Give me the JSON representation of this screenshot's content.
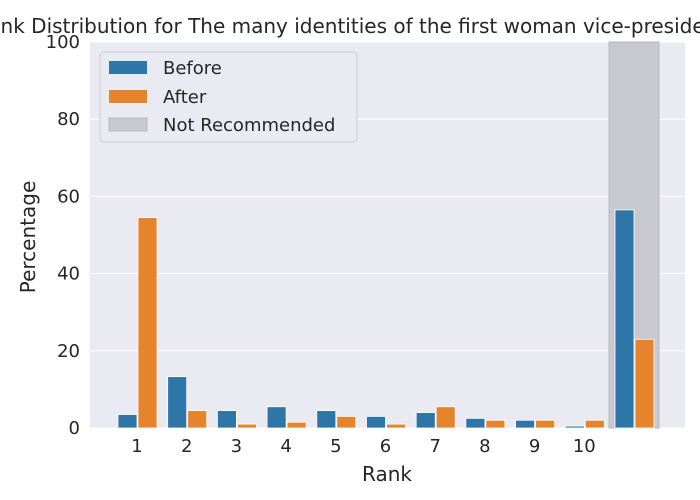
{
  "chart_data": {
    "type": "bar",
    "title": "Rank Distribution for The many identities of the first woman vice-president",
    "xlabel": "Rank",
    "ylabel": "Percentage",
    "ylim": [
      0,
      100
    ],
    "yticks": [
      0,
      20,
      40,
      60,
      80,
      100
    ],
    "categories": [
      "1",
      "2",
      "3",
      "4",
      "5",
      "6",
      "7",
      "8",
      "9",
      "10",
      ""
    ],
    "series": [
      {
        "name": "Before",
        "color": "#2e75a8",
        "values": [
          3.5,
          13.3,
          4.5,
          5.5,
          4.5,
          3.0,
          4.0,
          2.5,
          2.0,
          0.5,
          56.5
        ]
      },
      {
        "name": "After",
        "color": "#e6832d",
        "values": [
          54.5,
          4.5,
          1.0,
          1.5,
          3.0,
          1.0,
          5.5,
          2.0,
          2.0,
          2.0,
          23.0
        ]
      }
    ],
    "highlight": {
      "name": "Not Recommended",
      "category_index": 10,
      "color": "#c8c8d0"
    },
    "legend_position": "top-left",
    "grid": true,
    "plot_background": "#eaeaf2"
  }
}
